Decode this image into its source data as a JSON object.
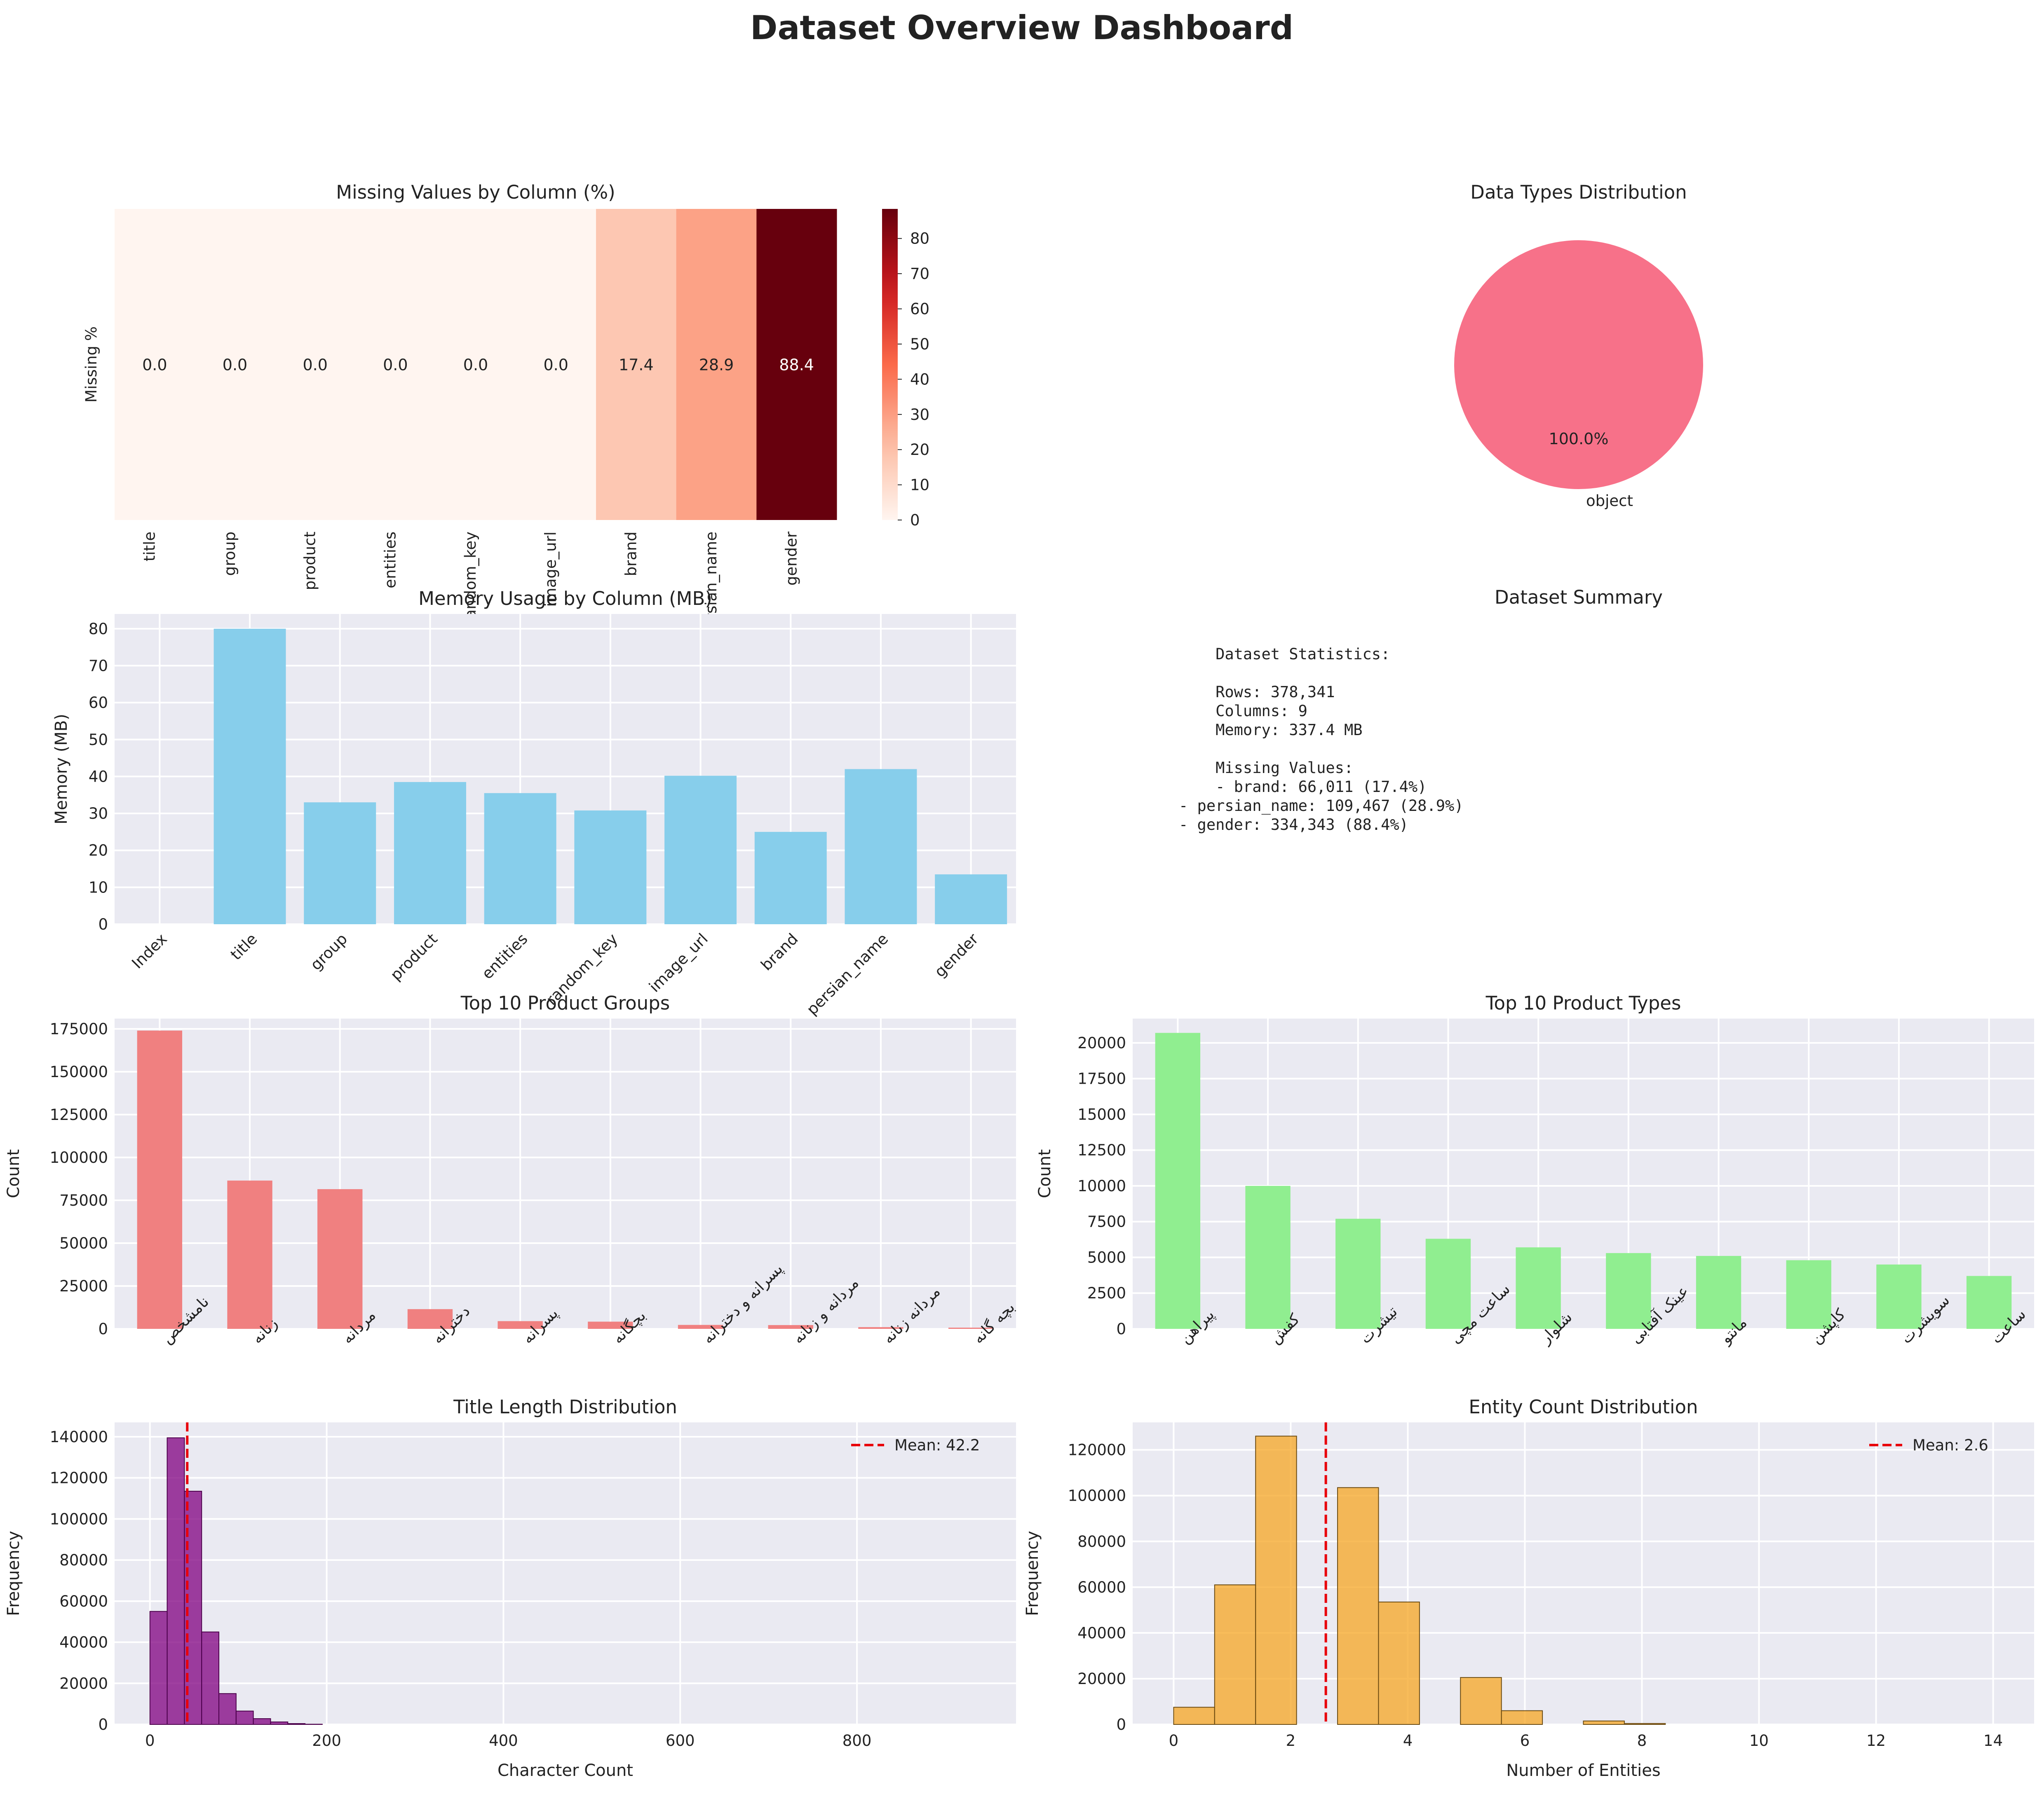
{
  "page_title": "Dataset Overview Dashboard",
  "colors": {
    "panel_bg": "#eaeaf2",
    "grid": "#ffffff",
    "memory_bar": "#87ceeb",
    "groups_bar": "#f08080",
    "types_bar": "#90ee90",
    "title_hist": "#800080",
    "entity_hist": "#f5a623",
    "pie": "#f77189",
    "mean_line": "#e8000b"
  },
  "summary": {
    "title": "Dataset Summary",
    "lines": [
      "    Dataset Statistics:",
      "",
      "    Rows: 378,341",
      "    Columns: 9",
      "    Memory: 337.4 MB",
      "",
      "    Missing Values:",
      "    - brand: 66,011 (17.4%)",
      "- persian_name: 109,467 (28.9%)",
      "- gender: 334,343 (88.4%)"
    ]
  },
  "chart_data": [
    {
      "type": "heatmap",
      "title": "Missing Values by Column (%)",
      "ylabel": "Missing %",
      "categories": [
        "title",
        "group",
        "product",
        "entities",
        "random_key",
        "image_url",
        "brand",
        "persian_name",
        "gender"
      ],
      "values": [
        0.0,
        0.0,
        0.0,
        0.0,
        0.0,
        0.0,
        17.4,
        28.9,
        88.4
      ],
      "value_labels": [
        "0.0",
        "0.0",
        "0.0",
        "0.0",
        "0.0",
        "0.0",
        "17.4",
        "28.9",
        "88.4"
      ],
      "colorbar_range": [
        0,
        88.4
      ],
      "colorbar_ticks": [
        0,
        10,
        20,
        30,
        40,
        50,
        60,
        70,
        80
      ],
      "colormap": "Reds"
    },
    {
      "type": "pie",
      "title": "Data Types Distribution",
      "labels": [
        "object"
      ],
      "values": [
        100.0
      ],
      "pct_labels": [
        "100.0%"
      ]
    },
    {
      "type": "bar",
      "title": "Memory Usage by Column (MB)",
      "ylabel": "Memory (MB)",
      "categories": [
        "Index",
        "title",
        "group",
        "product",
        "entities",
        "random_key",
        "image_url",
        "brand",
        "persian_name",
        "gender"
      ],
      "values": [
        0.0,
        80.0,
        33.0,
        38.5,
        35.5,
        30.8,
        40.2,
        25.0,
        42.0,
        13.5
      ],
      "ylim": [
        0,
        84
      ],
      "yticks": [
        0,
        10,
        20,
        30,
        40,
        50,
        60,
        70,
        80
      ],
      "grid": true
    },
    {
      "type": "bar",
      "title": "Top 10 Product Groups",
      "ylabel": "Count",
      "categories": [
        "نامشخص",
        "زنانه",
        "مردانه",
        "دخترانه",
        "پسرانه",
        "بچگانه",
        "پسرانه و دخترانه",
        "مردانه و زنانه",
        "مردانه زنانه",
        "بچه گانه"
      ],
      "values": [
        174000,
        86500,
        81500,
        11500,
        4500,
        4200,
        2300,
        2200,
        1000,
        700
      ],
      "ylim": [
        0,
        181000
      ],
      "yticks": [
        0,
        25000,
        50000,
        75000,
        100000,
        125000,
        150000,
        175000
      ],
      "grid": true
    },
    {
      "type": "bar",
      "title": "Top 10 Product Types",
      "ylabel": "Count",
      "categories": [
        "پیراهن",
        "کفش",
        "تیشرت",
        "ساعت مچی",
        "شلوار",
        "عینک آفتابی",
        "مانتو",
        "کاپشن",
        "سویشرت",
        "ساعت"
      ],
      "values": [
        20700,
        10000,
        7700,
        6300,
        5700,
        5300,
        5100,
        4800,
        4500,
        3700
      ],
      "ylim": [
        0,
        21700
      ],
      "yticks": [
        0,
        2500,
        5000,
        7500,
        10000,
        12500,
        15000,
        17500,
        20000
      ],
      "grid": true
    },
    {
      "type": "bar",
      "subtype": "histogram",
      "title": "Title Length Distribution",
      "xlabel": "Character Count",
      "ylabel": "Frequency",
      "bin_edges": [
        0,
        19.5,
        39,
        58.5,
        78,
        97.5,
        117,
        136.5,
        156,
        175.5,
        195
      ],
      "values": [
        55000,
        139500,
        113500,
        45000,
        15000,
        6500,
        2800,
        1200,
        400,
        100
      ],
      "xlim": [
        -40,
        980
      ],
      "ylim": [
        0,
        147000
      ],
      "xticks": [
        0,
        200,
        400,
        600,
        800
      ],
      "yticks": [
        0,
        20000,
        40000,
        60000,
        80000,
        100000,
        120000,
        140000
      ],
      "mean": 42.2,
      "legend": "Mean: 42.2",
      "legend_position": "top-right",
      "grid": true
    },
    {
      "type": "bar",
      "subtype": "histogram",
      "title": "Entity Count Distribution",
      "xlabel": "Number of Entities",
      "ylabel": "Frequency",
      "bin_edges": [
        0,
        0.7,
        1.4,
        2.1,
        2.8,
        3.5,
        4.2,
        4.9,
        5.6,
        6.3,
        7.0,
        7.7,
        8.4
      ],
      "values": [
        7500,
        61000,
        126000,
        0,
        103500,
        53500,
        0,
        20500,
        6000,
        0,
        1500,
        400
      ],
      "xlim": [
        -0.7,
        14.7
      ],
      "ylim": [
        0,
        132000
      ],
      "xticks": [
        0,
        2,
        4,
        6,
        8,
        10,
        12,
        14
      ],
      "yticks": [
        0,
        20000,
        40000,
        60000,
        80000,
        100000,
        120000
      ],
      "mean": 2.6,
      "legend": "Mean: 2.6",
      "legend_position": "top-right",
      "grid": true
    }
  ]
}
